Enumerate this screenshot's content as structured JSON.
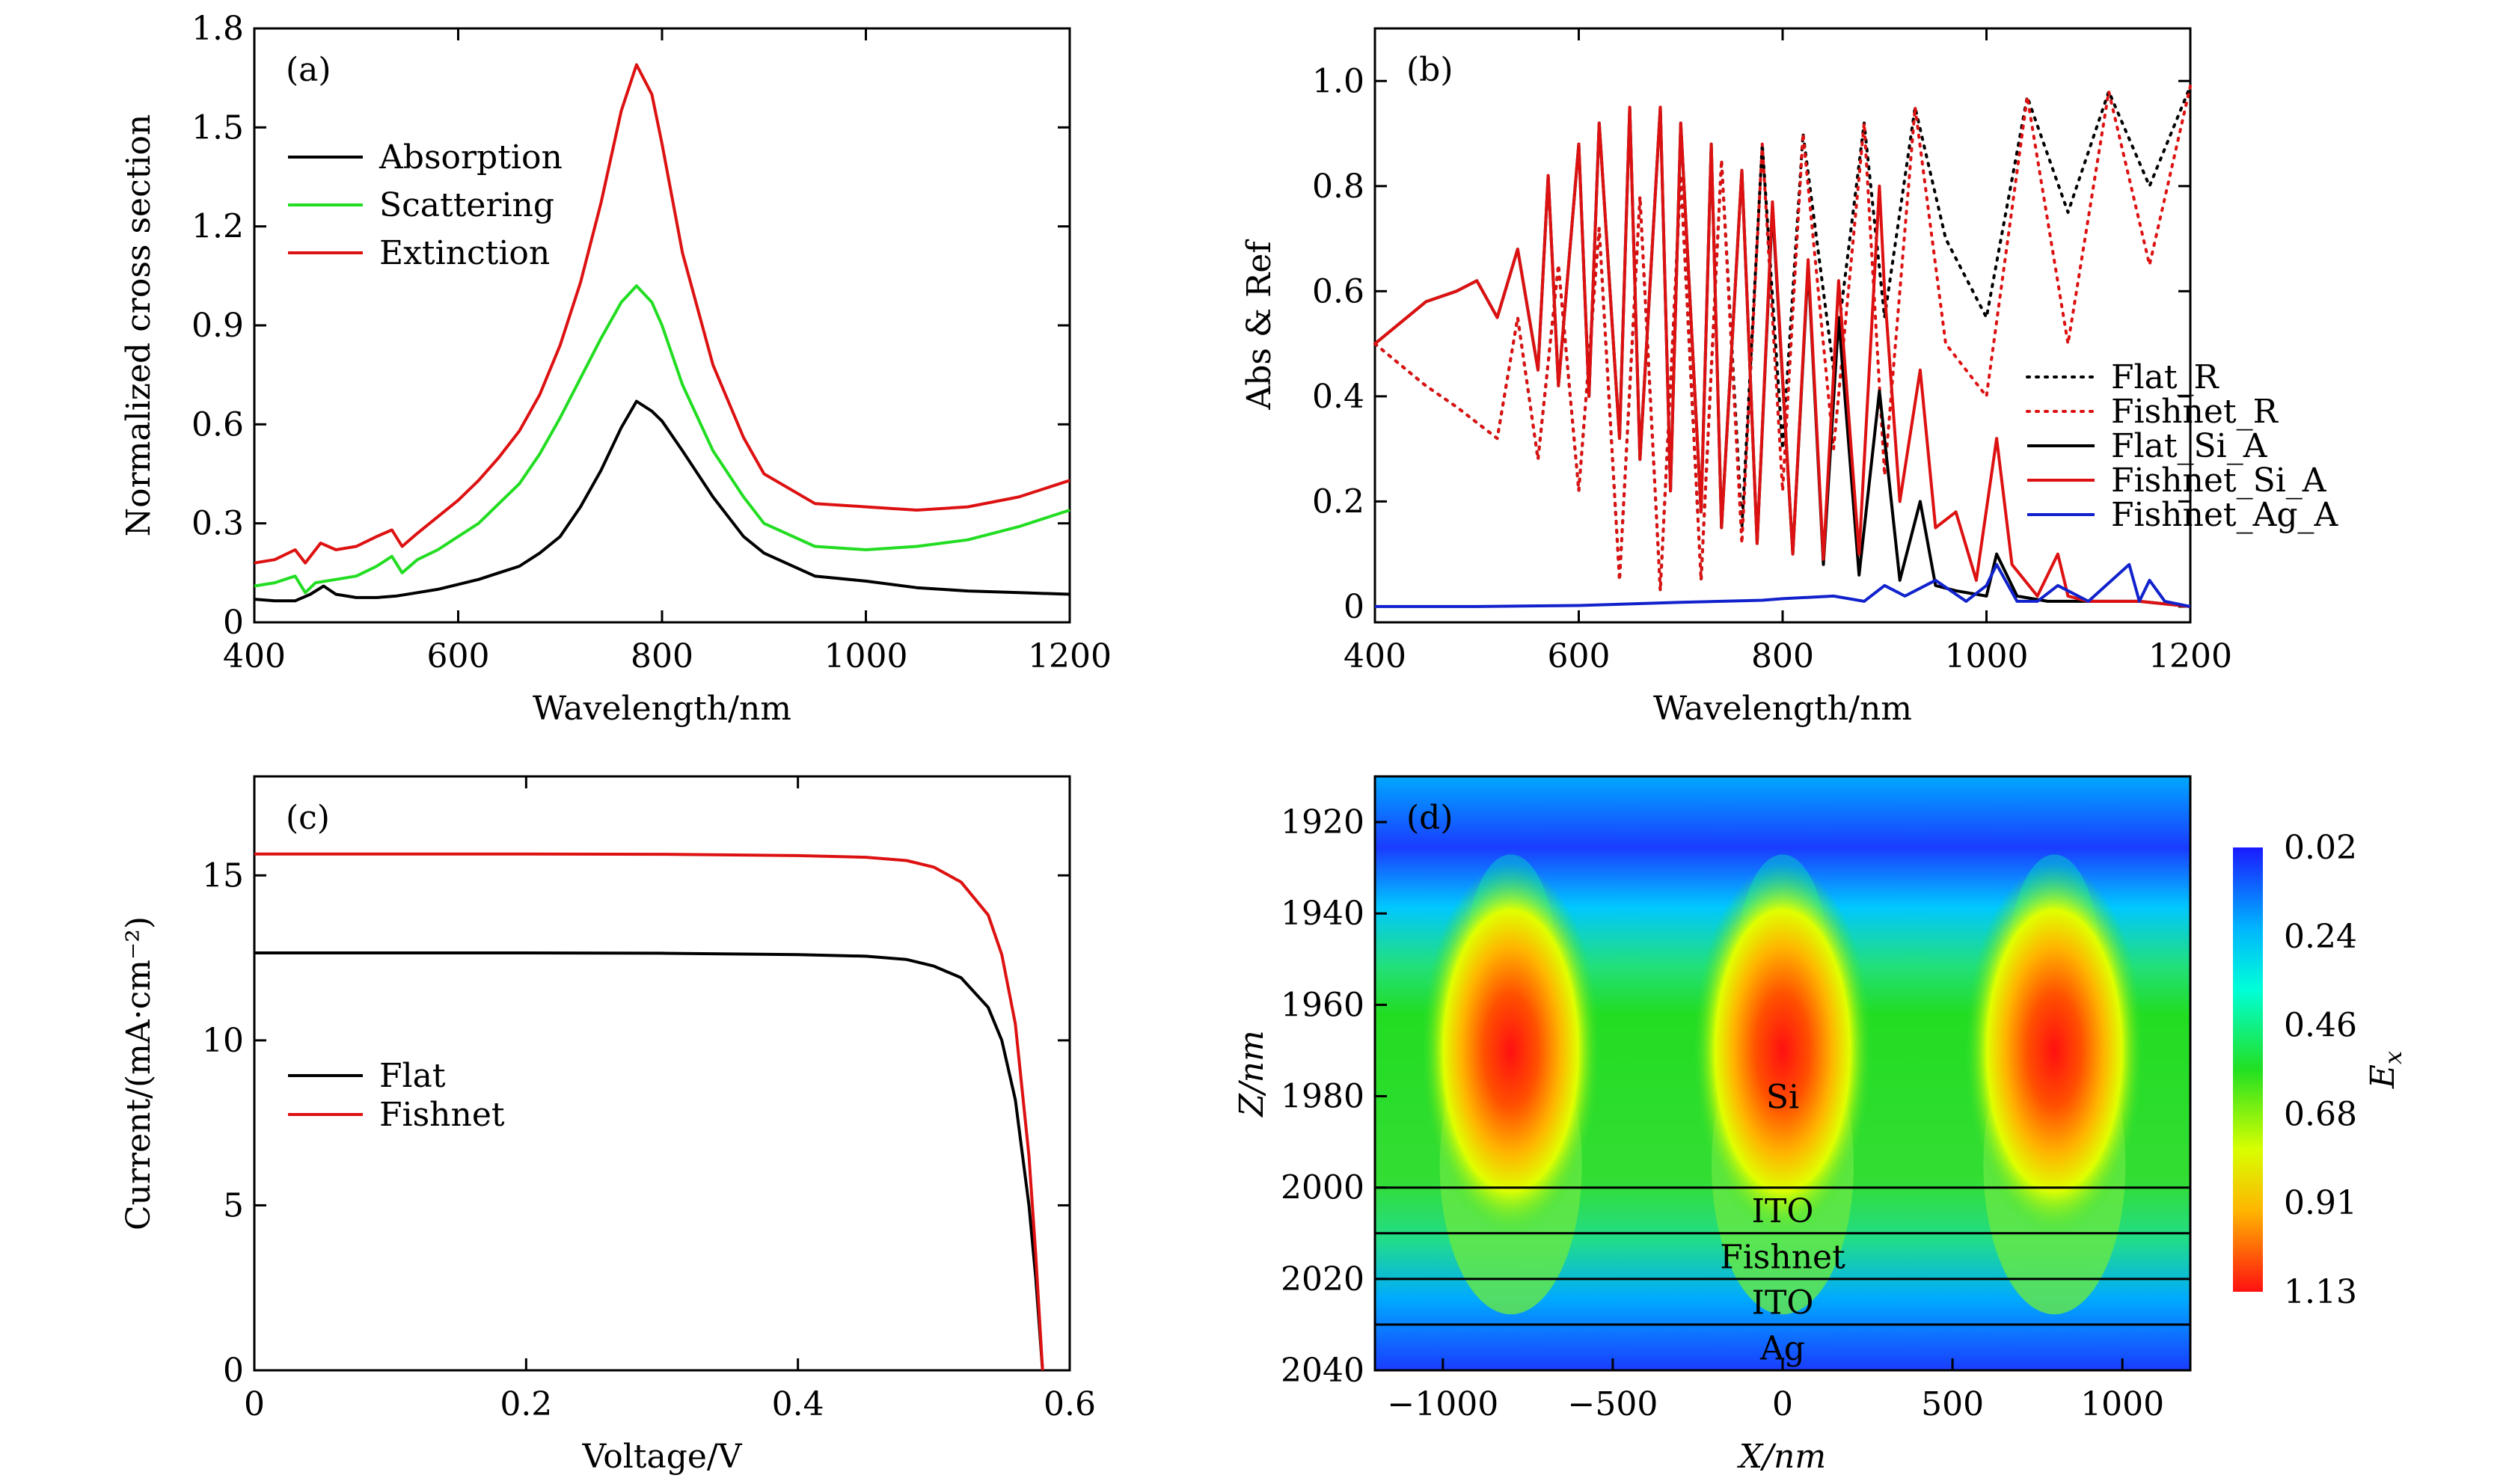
{
  "chart_data": [
    {
      "id": "a",
      "type": "line",
      "panel_label": "(a)",
      "xlabel": "Wavelength/nm",
      "ylabel": "Normalized cross section",
      "xlim": [
        400,
        1200
      ],
      "ylim": [
        0,
        1.8
      ],
      "xticks": [
        400,
        600,
        800,
        1000,
        1200
      ],
      "yticks": [
        0,
        0.3,
        0.6,
        0.9,
        1.2,
        1.5,
        1.8
      ],
      "ytick_labels": [
        "0",
        "0.3",
        "0.6",
        "0.9",
        "1.2",
        "1.5",
        "1.8"
      ],
      "legend_position": "top-left",
      "series": [
        {
          "name": "Absorption",
          "color": "#000000",
          "x": [
            400,
            420,
            440,
            455,
            468,
            480,
            500,
            520,
            540,
            560,
            580,
            600,
            620,
            640,
            660,
            680,
            700,
            720,
            740,
            760,
            775,
            790,
            800,
            820,
            850,
            880,
            900,
            950,
            1000,
            1050,
            1100,
            1150,
            1200
          ],
          "y": [
            0.07,
            0.065,
            0.065,
            0.085,
            0.11,
            0.085,
            0.075,
            0.075,
            0.08,
            0.09,
            0.1,
            0.115,
            0.13,
            0.15,
            0.17,
            0.21,
            0.26,
            0.35,
            0.46,
            0.59,
            0.67,
            0.64,
            0.61,
            0.52,
            0.38,
            0.26,
            0.21,
            0.14,
            0.125,
            0.105,
            0.095,
            0.09,
            0.085
          ]
        },
        {
          "name": "Scattering",
          "color": "#22dd22",
          "x": [
            400,
            420,
            440,
            450,
            460,
            480,
            500,
            520,
            535,
            545,
            560,
            580,
            600,
            620,
            640,
            660,
            680,
            700,
            720,
            740,
            760,
            775,
            790,
            800,
            820,
            850,
            880,
            900,
            950,
            1000,
            1050,
            1100,
            1150,
            1200
          ],
          "y": [
            0.11,
            0.12,
            0.14,
            0.09,
            0.12,
            0.13,
            0.14,
            0.17,
            0.2,
            0.15,
            0.19,
            0.22,
            0.26,
            0.3,
            0.36,
            0.42,
            0.51,
            0.62,
            0.74,
            0.86,
            0.97,
            1.02,
            0.97,
            0.9,
            0.72,
            0.52,
            0.38,
            0.3,
            0.23,
            0.22,
            0.23,
            0.25,
            0.29,
            0.34
          ]
        },
        {
          "name": "Extinction",
          "color": "#dd1111",
          "x": [
            400,
            420,
            440,
            450,
            465,
            480,
            500,
            520,
            535,
            545,
            560,
            580,
            600,
            620,
            640,
            660,
            680,
            700,
            720,
            740,
            760,
            775,
            790,
            800,
            820,
            850,
            880,
            900,
            950,
            1000,
            1050,
            1100,
            1150,
            1200
          ],
          "y": [
            0.18,
            0.19,
            0.22,
            0.18,
            0.24,
            0.22,
            0.23,
            0.26,
            0.28,
            0.23,
            0.27,
            0.32,
            0.37,
            0.43,
            0.5,
            0.58,
            0.69,
            0.84,
            1.03,
            1.27,
            1.55,
            1.69,
            1.6,
            1.45,
            1.12,
            0.78,
            0.56,
            0.45,
            0.36,
            0.35,
            0.34,
            0.35,
            0.38,
            0.43
          ]
        }
      ]
    },
    {
      "id": "b",
      "type": "line",
      "panel_label": "(b)",
      "xlabel": "Wavelength/nm",
      "ylabel": "Abs & Ref",
      "xlim": [
        400,
        1200
      ],
      "ylim": [
        -0.03,
        1.1
      ],
      "xticks": [
        400,
        600,
        800,
        1000,
        1200
      ],
      "yticks": [
        0,
        0.2,
        0.4,
        0.6,
        0.8,
        1.0
      ],
      "ytick_labels": [
        "0",
        "0.2",
        "0.4",
        "0.6",
        "0.8",
        "1.0"
      ],
      "legend_position": "bottom-right",
      "series": [
        {
          "name": "Flat_R",
          "color": "#000000",
          "style": "dotted",
          "x": [
            400,
            450,
            480,
            520,
            540,
            560,
            580,
            600,
            620,
            640,
            660,
            680,
            700,
            720,
            740,
            760,
            780,
            800,
            820,
            850,
            880,
            900,
            930,
            960,
            1000,
            1040,
            1080,
            1120,
            1160,
            1200
          ],
          "y": [
            0.5,
            0.42,
            0.38,
            0.32,
            0.55,
            0.28,
            0.65,
            0.22,
            0.72,
            0.05,
            0.78,
            0.03,
            0.82,
            0.05,
            0.85,
            0.15,
            0.88,
            0.3,
            0.9,
            0.45,
            0.92,
            0.55,
            0.95,
            0.7,
            0.55,
            0.97,
            0.75,
            0.98,
            0.8,
            0.99
          ]
        },
        {
          "name": "Fishnet_R",
          "color": "#dd1111",
          "style": "dotted",
          "x": [
            400,
            450,
            480,
            520,
            540,
            560,
            580,
            600,
            620,
            640,
            660,
            680,
            700,
            720,
            740,
            760,
            780,
            800,
            820,
            850,
            880,
            900,
            930,
            960,
            1000,
            1040,
            1080,
            1120,
            1160,
            1200
          ],
          "y": [
            0.5,
            0.42,
            0.38,
            0.32,
            0.55,
            0.28,
            0.65,
            0.22,
            0.72,
            0.05,
            0.78,
            0.03,
            0.82,
            0.05,
            0.85,
            0.12,
            0.88,
            0.22,
            0.9,
            0.3,
            0.92,
            0.25,
            0.95,
            0.5,
            0.4,
            0.97,
            0.5,
            0.98,
            0.65,
            0.99
          ]
        },
        {
          "name": "Flat_Si_A",
          "color": "#000000",
          "style": "solid",
          "x": [
            400,
            450,
            480,
            500,
            520,
            540,
            560,
            570,
            580,
            600,
            610,
            620,
            640,
            650,
            660,
            680,
            690,
            700,
            720,
            730,
            740,
            760,
            775,
            790,
            810,
            825,
            840,
            855,
            875,
            895,
            915,
            935,
            950,
            970,
            1000,
            1010,
            1030,
            1060,
            1100,
            1150,
            1200
          ],
          "y": [
            0.5,
            0.58,
            0.6,
            0.62,
            0.55,
            0.68,
            0.45,
            0.82,
            0.42,
            0.88,
            0.4,
            0.92,
            0.32,
            0.95,
            0.28,
            0.95,
            0.22,
            0.92,
            0.18,
            0.88,
            0.15,
            0.83,
            0.12,
            0.76,
            0.1,
            0.65,
            0.08,
            0.55,
            0.06,
            0.41,
            0.05,
            0.2,
            0.04,
            0.03,
            0.02,
            0.1,
            0.02,
            0.01,
            0.01,
            0.01,
            0.0
          ]
        },
        {
          "name": "Fishnet_Si_A",
          "color": "#dd1111",
          "style": "solid",
          "x": [
            400,
            450,
            480,
            500,
            520,
            540,
            560,
            570,
            580,
            600,
            610,
            620,
            640,
            650,
            660,
            680,
            690,
            700,
            720,
            730,
            740,
            760,
            775,
            790,
            810,
            825,
            840,
            855,
            875,
            895,
            900,
            915,
            935,
            950,
            970,
            990,
            1010,
            1025,
            1050,
            1070,
            1080,
            1100,
            1150,
            1200
          ],
          "y": [
            0.5,
            0.58,
            0.6,
            0.62,
            0.55,
            0.68,
            0.45,
            0.82,
            0.42,
            0.88,
            0.4,
            0.92,
            0.32,
            0.95,
            0.28,
            0.95,
            0.22,
            0.92,
            0.18,
            0.88,
            0.15,
            0.83,
            0.12,
            0.77,
            0.1,
            0.66,
            0.09,
            0.62,
            0.1,
            0.8,
            0.6,
            0.2,
            0.45,
            0.15,
            0.18,
            0.05,
            0.32,
            0.08,
            0.02,
            0.1,
            0.02,
            0.01,
            0.01,
            0.0
          ]
        },
        {
          "name": "Fishnet_Ag_A",
          "color": "#1122cc",
          "style": "solid",
          "x": [
            400,
            500,
            600,
            650,
            700,
            740,
            780,
            800,
            850,
            880,
            900,
            920,
            950,
            980,
            1000,
            1010,
            1030,
            1050,
            1070,
            1100,
            1140,
            1150,
            1160,
            1175,
            1200
          ],
          "y": [
            0.0,
            0.0,
            0.002,
            0.005,
            0.008,
            0.01,
            0.012,
            0.015,
            0.02,
            0.01,
            0.04,
            0.02,
            0.05,
            0.01,
            0.04,
            0.08,
            0.01,
            0.01,
            0.04,
            0.01,
            0.08,
            0.01,
            0.05,
            0.01,
            0.0
          ]
        }
      ]
    },
    {
      "id": "c",
      "type": "line",
      "panel_label": "(c)",
      "xlabel": "Voltage/V",
      "ylabel": "Current/(mA·cm⁻²)",
      "xlim": [
        0,
        0.6
      ],
      "ylim": [
        0,
        18
      ],
      "xticks": [
        0,
        0.2,
        0.4,
        0.6
      ],
      "xtick_labels": [
        "0",
        "0.2",
        "0.4",
        "0.6"
      ],
      "yticks": [
        0,
        5,
        10,
        15
      ],
      "ytick_labels": [
        "0",
        "5",
        "10",
        "15"
      ],
      "legend_position": "center-left",
      "series": [
        {
          "name": "Flat",
          "color": "#000000",
          "x": [
            0,
            0.1,
            0.2,
            0.3,
            0.4,
            0.45,
            0.48,
            0.5,
            0.52,
            0.54,
            0.55,
            0.56,
            0.57,
            0.575,
            0.58
          ],
          "y": [
            12.65,
            12.65,
            12.65,
            12.64,
            12.6,
            12.55,
            12.45,
            12.25,
            11.9,
            11.0,
            10.0,
            8.2,
            5.0,
            2.8,
            0.0
          ]
        },
        {
          "name": "Fishnet",
          "color": "#dd1111",
          "x": [
            0,
            0.1,
            0.2,
            0.3,
            0.4,
            0.45,
            0.48,
            0.5,
            0.52,
            0.54,
            0.55,
            0.56,
            0.57,
            0.575,
            0.58
          ],
          "y": [
            15.65,
            15.65,
            15.65,
            15.64,
            15.6,
            15.55,
            15.45,
            15.25,
            14.8,
            13.8,
            12.6,
            10.5,
            6.5,
            3.5,
            0.0
          ]
        }
      ]
    },
    {
      "id": "d",
      "type": "heatmap",
      "panel_label": "(d)",
      "xlabel": "X/nm",
      "ylabel": "Z/nm",
      "xlim": [
        -1200,
        1200
      ],
      "ylim": [
        1910,
        2040
      ],
      "xticks": [
        -1000,
        -500,
        0,
        500,
        1000
      ],
      "xtick_labels": [
        "−1000",
        "−500",
        "0",
        "500",
        "1000"
      ],
      "yticks": [
        1920,
        1940,
        1960,
        1980,
        2000,
        2020,
        2040
      ],
      "ytick_labels": [
        "1920",
        "1940",
        "1960",
        "1980",
        "2000",
        "2020",
        "2040"
      ],
      "layer_boundaries": [
        2000,
        2010,
        2020,
        2030
      ],
      "layer_labels": [
        "Si",
        "ITO",
        "Fishnet",
        "ITO",
        "Ag"
      ],
      "colorbar_label": "E",
      "colorbar_subscript": "x",
      "colorbar_ticks": [
        "0.02",
        "0.24",
        "0.46",
        "0.68",
        "0.91",
        "1.13"
      ],
      "color_range": [
        0.02,
        1.13
      ],
      "hotspot_x": [
        -800,
        0,
        800
      ],
      "hotspot_z": 1970
    }
  ]
}
